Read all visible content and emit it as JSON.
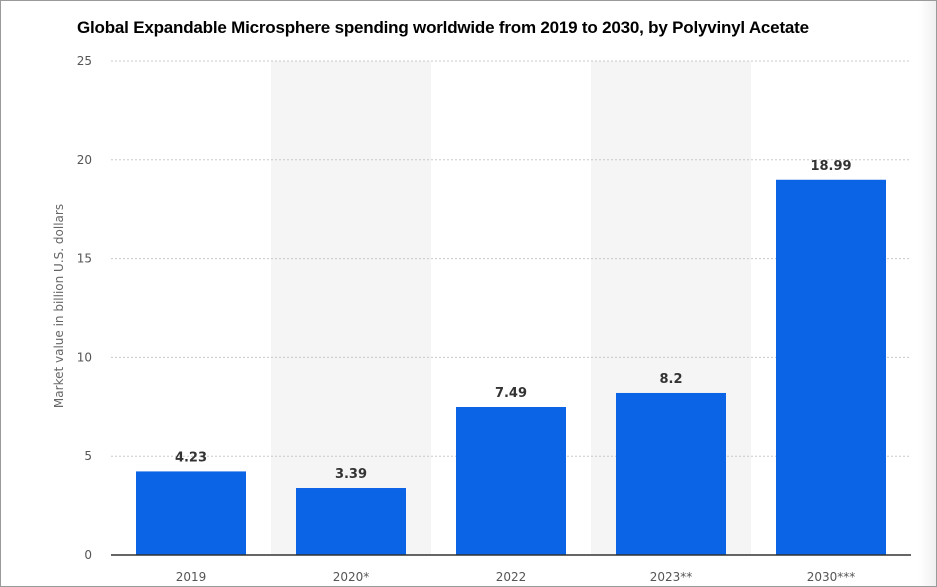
{
  "chart_data": {
    "type": "bar",
    "title": "Global Expandable Microsphere spending worldwide from 2019 to 2030, by Polyvinyl Acetate",
    "ylabel": "Market value in billion U.S. dollars",
    "xlabel": "",
    "categories": [
      "2019",
      "2020*",
      "2022",
      "2023**",
      "2030***"
    ],
    "values": [
      4.23,
      3.39,
      7.49,
      8.2,
      18.99
    ],
    "value_labels": [
      "4.23",
      "3.39",
      "7.49",
      "8.2",
      "18.99"
    ],
    "ylim": [
      0,
      25
    ],
    "yticks": [
      0,
      5,
      10,
      15,
      20,
      25
    ],
    "grid": true,
    "bar_color": "#0b63e5",
    "alt_band_color": "#f5f5f5"
  }
}
